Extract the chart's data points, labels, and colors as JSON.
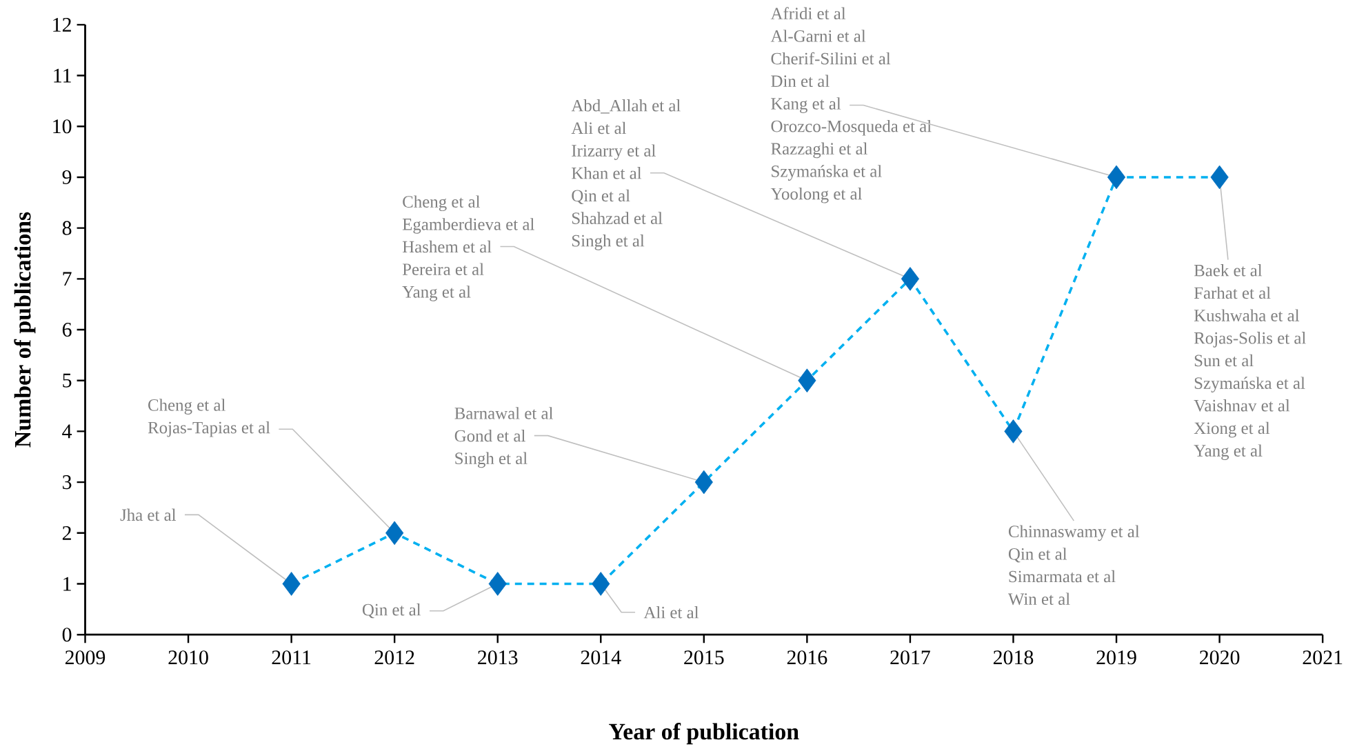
{
  "chart_data": {
    "type": "line",
    "xlabel": "Year of publication",
    "ylabel": "Number of publications",
    "x": [
      2011,
      2012,
      2013,
      2014,
      2015,
      2016,
      2017,
      2018,
      2019,
      2020
    ],
    "series": [
      {
        "color": "#00b0f0",
        "colors": [
          "#0070c0",
          "#0070c0",
          "#0070c0",
          "#0070c0",
          "#0070c0",
          "#0070c0",
          "#0070c0",
          "#0070c0",
          "#0070c0",
          "#0070c0"
        ],
        "values": [
          1,
          2,
          1,
          1,
          3,
          5,
          7,
          4,
          9,
          9
        ]
      }
    ],
    "marker": "diamond",
    "line_style": "dashed",
    "grid": false,
    "xlim": [
      2009,
      2021
    ],
    "xticks": [
      2009,
      2010,
      2011,
      2012,
      2013,
      2014,
      2015,
      2016,
      2017,
      2018,
      2019,
      2020,
      2021
    ],
    "ylim": [
      0,
      12
    ],
    "yticks": [
      0,
      1,
      2,
      3,
      4,
      5,
      6,
      7,
      8,
      9,
      10,
      11,
      12
    ],
    "annotations": [
      {
        "text": "Jha et al",
        "x": 2011,
        "y": 1
      },
      "Cheng et al",
      {
        "text": "Rojas-Tapias  et al",
        "x": 2012,
        "y": 2
      },
      {
        "text": "Qin et al",
        "x": 2013,
        "y": 1
      },
      {
        "text": "Ali et al",
        "x": 2014,
        "y": 1
      },
      "Barnawal et al",
      {
        "text": "Gond et al",
        "x": 2015,
        "y": 3
      },
      "Singh et  al",
      "Cheng et al",
      "Egamberdieva et al",
      {
        "text": "Hashem et al",
        "x": 2016,
        "y": 5
      },
      "Pereira et al",
      "Yang et al",
      "Abd_Allah et al",
      "Ali et al",
      "Irizarry et al",
      {
        "text": "Khan et al",
        "x": 2017,
        "y": 7
      },
      "Qin et al",
      "Shahzad et al",
      "Singh et al",
      {
        "text": "Chinnaswamy et al",
        "x": 2018,
        "y": 4
      },
      "Qin et al",
      "Simarmata et al",
      "Win et al",
      "Afridi et al",
      "Al-Garni et al",
      "Cherif-Silini et al",
      "Din et al",
      {
        "text": "Kang et al",
        "x": 2019,
        "y": 9
      },
      "Orozco-Mosqueda et al",
      "Razzaghi et al",
      "Szymańska et al",
      "Yoolong et al",
      {
        "text": "Baek et al",
        "x": 2020,
        "y": 9
      },
      "Farhat et al",
      "Kushwaha et al",
      "Rojas-Solis et al",
      "Sun et al",
      "Szymańska et al",
      "Vaishnav et al",
      "Xiong et al",
      "Yang et al"
    ]
  }
}
